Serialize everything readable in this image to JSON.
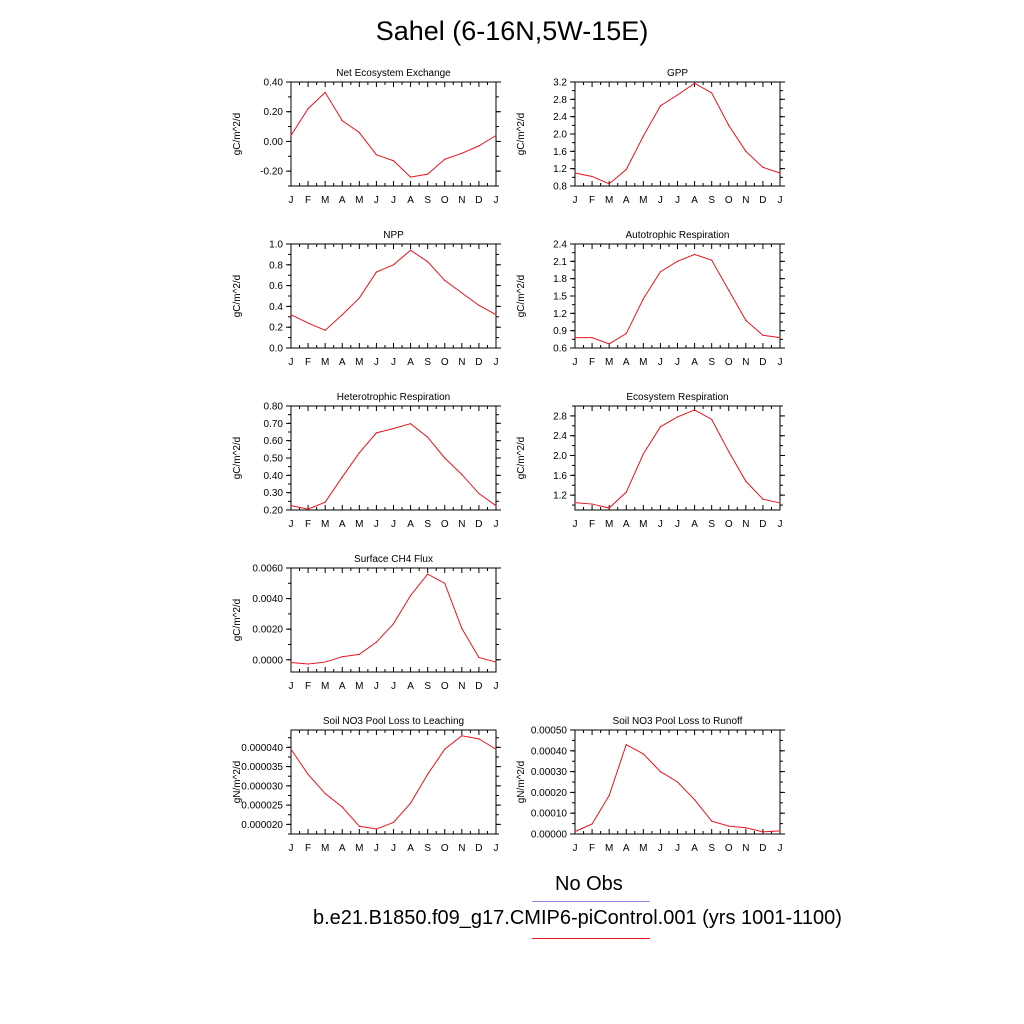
{
  "title": "Sahel (6-16N,5W-15E)",
  "months": [
    "J",
    "F",
    "M",
    "A",
    "M",
    "J",
    "J",
    "A",
    "S",
    "O",
    "N",
    "D",
    "J"
  ],
  "colors": {
    "model_line": "#e8141e",
    "obs_line": "#8c8cf0"
  },
  "legend": {
    "items": [
      {
        "label": "No Obs",
        "color": "#8c8cf0"
      },
      {
        "label": "b.e21.B1850.f09_g17.CMIP6-piControl.001 (yrs 1001-1100)",
        "color": "#e8141e"
      }
    ]
  },
  "chart_data": [
    {
      "type": "line",
      "title": "Net Ecosystem Exchange",
      "ylabel": "gC/m^2/d",
      "ylim": [
        -0.3,
        0.4
      ],
      "yticks": [
        -0.2,
        0.0,
        0.2,
        0.4
      ],
      "ytick_labels": [
        "-0.20",
        "0.00",
        "0.20",
        "0.40"
      ],
      "series": [
        {
          "values": [
            0.04,
            0.22,
            0.33,
            0.14,
            0.06,
            -0.09,
            -0.13,
            -0.24,
            -0.22,
            -0.12,
            -0.08,
            -0.03,
            0.04
          ]
        }
      ]
    },
    {
      "type": "line",
      "title": "GPP",
      "ylabel": "gC/m^2/d",
      "ylim": [
        0.8,
        3.2
      ],
      "yticks": [
        0.8,
        1.2,
        1.6,
        2.0,
        2.4,
        2.8,
        3.2
      ],
      "ytick_labels": [
        "0.8",
        "1.2",
        "1.6",
        "2.0",
        "2.4",
        "2.8",
        "3.2"
      ],
      "series": [
        {
          "values": [
            1.1,
            1.02,
            0.85,
            1.18,
            1.95,
            2.65,
            2.9,
            3.17,
            2.95,
            2.2,
            1.6,
            1.23,
            1.1
          ]
        }
      ]
    },
    {
      "type": "line",
      "title": "NPP",
      "ylabel": "gC/m^2/d",
      "ylim": [
        0.0,
        1.0
      ],
      "yticks": [
        0.0,
        0.2,
        0.4,
        0.6,
        0.8,
        1.0
      ],
      "ytick_labels": [
        "0.0",
        "0.2",
        "0.4",
        "0.6",
        "0.8",
        "1.0"
      ],
      "series": [
        {
          "values": [
            0.32,
            0.24,
            0.17,
            0.32,
            0.48,
            0.73,
            0.8,
            0.94,
            0.83,
            0.65,
            0.53,
            0.41,
            0.32
          ]
        }
      ]
    },
    {
      "type": "line",
      "title": "Autotrophic Respiration",
      "ylabel": "gC/m^2/d",
      "ylim": [
        0.6,
        2.4
      ],
      "yticks": [
        0.6,
        0.9,
        1.2,
        1.5,
        1.8,
        2.1,
        2.4
      ],
      "ytick_labels": [
        "0.6",
        "0.9",
        "1.2",
        "1.5",
        "1.8",
        "2.1",
        "2.4"
      ],
      "series": [
        {
          "values": [
            0.78,
            0.78,
            0.67,
            0.85,
            1.45,
            1.92,
            2.1,
            2.22,
            2.12,
            1.6,
            1.08,
            0.82,
            0.78
          ]
        }
      ]
    },
    {
      "type": "line",
      "title": "Heterotrophic Respiration",
      "ylabel": "gC/m^2/d",
      "ylim": [
        0.2,
        0.8
      ],
      "yticks": [
        0.2,
        0.3,
        0.4,
        0.5,
        0.6,
        0.7,
        0.8
      ],
      "ytick_labels": [
        "0.20",
        "0.30",
        "0.40",
        "0.50",
        "0.60",
        "0.70",
        "0.80"
      ],
      "series": [
        {
          "values": [
            0.225,
            0.205,
            0.245,
            0.39,
            0.53,
            0.645,
            0.67,
            0.698,
            0.62,
            0.5,
            0.405,
            0.295,
            0.225
          ]
        }
      ]
    },
    {
      "type": "line",
      "title": "Ecosystem Respiration",
      "ylabel": "gC/m^2/d",
      "ylim": [
        0.9,
        3.0
      ],
      "yticks": [
        1.2,
        1.6,
        2.0,
        2.4,
        2.8
      ],
      "ytick_labels": [
        "1.2",
        "1.6",
        "2.0",
        "2.4",
        "2.8"
      ],
      "series": [
        {
          "values": [
            1.05,
            1.02,
            0.94,
            1.26,
            2.03,
            2.58,
            2.78,
            2.92,
            2.73,
            2.08,
            1.48,
            1.12,
            1.04
          ]
        }
      ]
    },
    {
      "type": "line",
      "title": "Surface CH4 Flux",
      "ylabel": "gC/m^2/d",
      "ylim": [
        -0.0008,
        0.006
      ],
      "yticks": [
        0.0,
        0.002,
        0.004,
        0.006
      ],
      "ytick_labels": [
        "0.0000",
        "0.0020",
        "0.0040",
        "0.0060"
      ],
      "series": [
        {
          "values": [
            -0.00018,
            -0.00028,
            -0.00015,
            0.0002,
            0.00035,
            0.00115,
            0.00235,
            0.0042,
            0.0056,
            0.005,
            0.00205,
            0.00015,
            -0.00015
          ]
        }
      ]
    },
    {
      "type": "line",
      "title": "Soil NO3 Pool Loss to Leaching",
      "ylabel": "gN/m^2/d",
      "ylim": [
        1.75e-05,
        4.45e-05
      ],
      "yticks": [
        2e-05,
        2.5e-05,
        3e-05,
        3.5e-05,
        4e-05
      ],
      "ytick_labels": [
        "0.000020",
        "0.000025",
        "0.000030",
        "0.000035",
        "0.000040"
      ],
      "series": [
        {
          "values": [
            3.95e-05,
            3.3e-05,
            2.8e-05,
            2.45e-05,
            1.95e-05,
            1.88e-05,
            2.05e-05,
            2.55e-05,
            3.3e-05,
            3.95e-05,
            4.3e-05,
            4.22e-05,
            3.95e-05
          ]
        }
      ]
    },
    {
      "type": "line",
      "title": "Soil NO3 Pool Loss to Runoff",
      "ylabel": "gN/m^2/d",
      "ylim": [
        0.0,
        0.0005
      ],
      "yticks": [
        0.0,
        0.0001,
        0.0002,
        0.0003,
        0.0004,
        0.0005
      ],
      "ytick_labels": [
        "0.00000",
        "0.00010",
        "0.00020",
        "0.00030",
        "0.00040",
        "0.00050"
      ],
      "series": [
        {
          "values": [
            1.2e-05,
            4.8e-05,
            0.000185,
            0.00043,
            0.000385,
            0.0003,
            0.00025,
            0.000165,
            6.2e-05,
            3.8e-05,
            3e-05,
            1e-05,
            1.5e-05
          ]
        }
      ]
    }
  ]
}
